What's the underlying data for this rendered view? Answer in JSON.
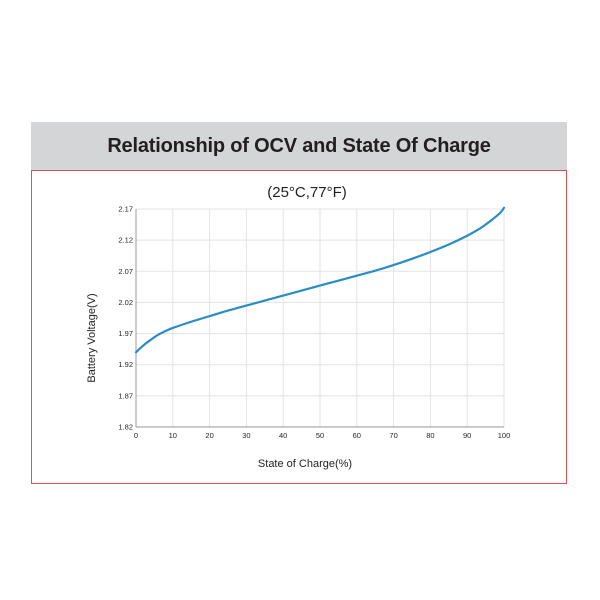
{
  "header": {
    "title": "Relationship of OCV and State Of Charge"
  },
  "chart_data": {
    "type": "line",
    "title": "Relationship of OCV and State Of Charge",
    "subtitle": "(25°C,77°F)",
    "xlabel": "State of Charge(%)",
    "ylabel": "Battery Voltage(V)",
    "xlim": [
      0,
      100
    ],
    "ylim": [
      1.82,
      2.17
    ],
    "x_ticks": [
      0,
      10,
      20,
      30,
      40,
      50,
      60,
      70,
      80,
      90,
      100
    ],
    "y_ticks": [
      1.82,
      1.87,
      1.92,
      1.97,
      2.02,
      2.07,
      2.12,
      2.17
    ],
    "x_tick_labels": [
      "0",
      "10",
      "20",
      "30",
      "40",
      "50",
      "60",
      "70",
      "80",
      "90",
      "100"
    ],
    "y_tick_labels": [
      "1.82",
      "1.87",
      "1.92",
      "1.97",
      "2.02",
      "2.07",
      "2.12",
      "2.17"
    ],
    "grid": true,
    "legend": "none",
    "series": [
      {
        "color": "#2a8cc4",
        "x": [
          0,
          2,
          4,
          6,
          8,
          10,
          15,
          20,
          25,
          30,
          35,
          40,
          45,
          50,
          55,
          60,
          65,
          70,
          75,
          80,
          85,
          90,
          93,
          95,
          97,
          99,
          100
        ],
        "y": [
          1.94,
          1.951,
          1.96,
          1.968,
          1.974,
          1.979,
          1.989,
          1.998,
          2.007,
          2.015,
          2.023,
          2.031,
          2.039,
          2.047,
          2.055,
          2.063,
          2.071,
          2.08,
          2.09,
          2.101,
          2.113,
          2.127,
          2.137,
          2.145,
          2.154,
          2.164,
          2.172
        ]
      }
    ]
  }
}
